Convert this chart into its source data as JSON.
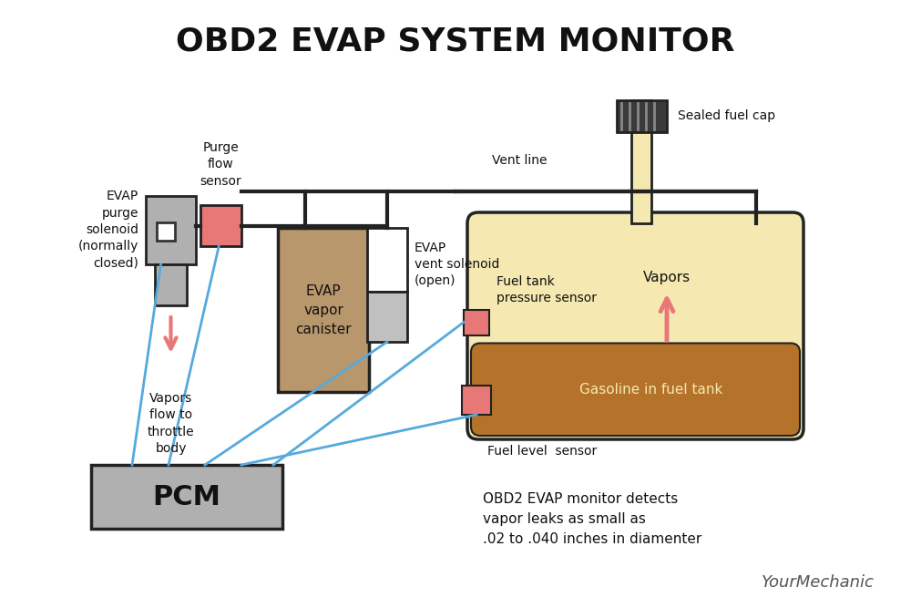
{
  "title": "OBD2 EVAP SYSTEM MONITOR",
  "bg_color": "#ffffff",
  "title_fontsize": 26,
  "title_fontweight": "bold",
  "solenoid_body_color": "#b0b0b0",
  "solenoid_outline": "#222222",
  "purge_flow_sensor_color": "#e87878",
  "evap_canister_color": "#b8976c",
  "vent_solenoid_color": "#c0c0c0",
  "pcm_color": "#b0b0b0",
  "fuel_tank_body_color": "#f5e8b0",
  "fuel_tank_gasoline_color": "#b5722a",
  "fuel_cap_color": "#3a3a3a",
  "fuel_tank_outline": "#222222",
  "pipe_color": "#222222",
  "wire_color": "#55aadd",
  "arrow_color": "#e87878",
  "sensor_small_color": "#e87878",
  "label_evap_purge": "EVAP\npurge\nsolenoid\n(normally\nclosed)",
  "label_purge_flow": "Purge\nflow\nsensor",
  "label_evap_canister": "EVAP\nvapor\ncanister",
  "label_vent_solenoid": "EVAP\nvent solenoid\n(open)",
  "label_vent_line": "Vent line",
  "label_fuel_tank_pressure": "Fuel tank\npressure sensor",
  "label_sealed_fuel_cap": "Sealed fuel cap",
  "label_vapors_flow": "Vapors\nflow to\nthrottle\nbody",
  "label_vapors": "Vapors",
  "label_gasoline": "Gasoline in fuel tank",
  "label_pcm": "PCM",
  "label_fuel_level": "Fuel level  sensor",
  "label_obd2_note": "OBD2 EVAP monitor detects\nvapor leaks as small as\n.02 to .040 inches in diamenter",
  "label_yourmechanic": "YourMechanic"
}
